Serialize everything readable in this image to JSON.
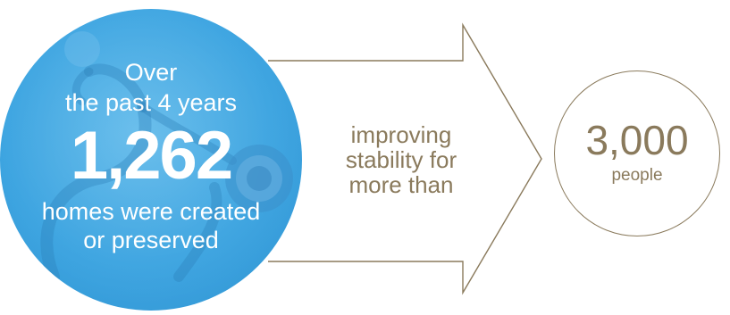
{
  "stat": {
    "intro_line_1": "Over",
    "intro_line_2": "the past 4 years",
    "number": "1,262",
    "outro_line_1": "homes were created",
    "outro_line_2": "or preserved"
  },
  "connector": {
    "line_1": "improving",
    "line_2": "stability for",
    "line_3": "more than"
  },
  "result": {
    "number": "3,000",
    "unit": "people"
  },
  "colors": {
    "circle_blue": "#3aa3e0",
    "accent_brown": "#8a7a5c",
    "text_white": "#ffffff"
  },
  "background_image": {
    "icon": "stethoscope-icon"
  }
}
